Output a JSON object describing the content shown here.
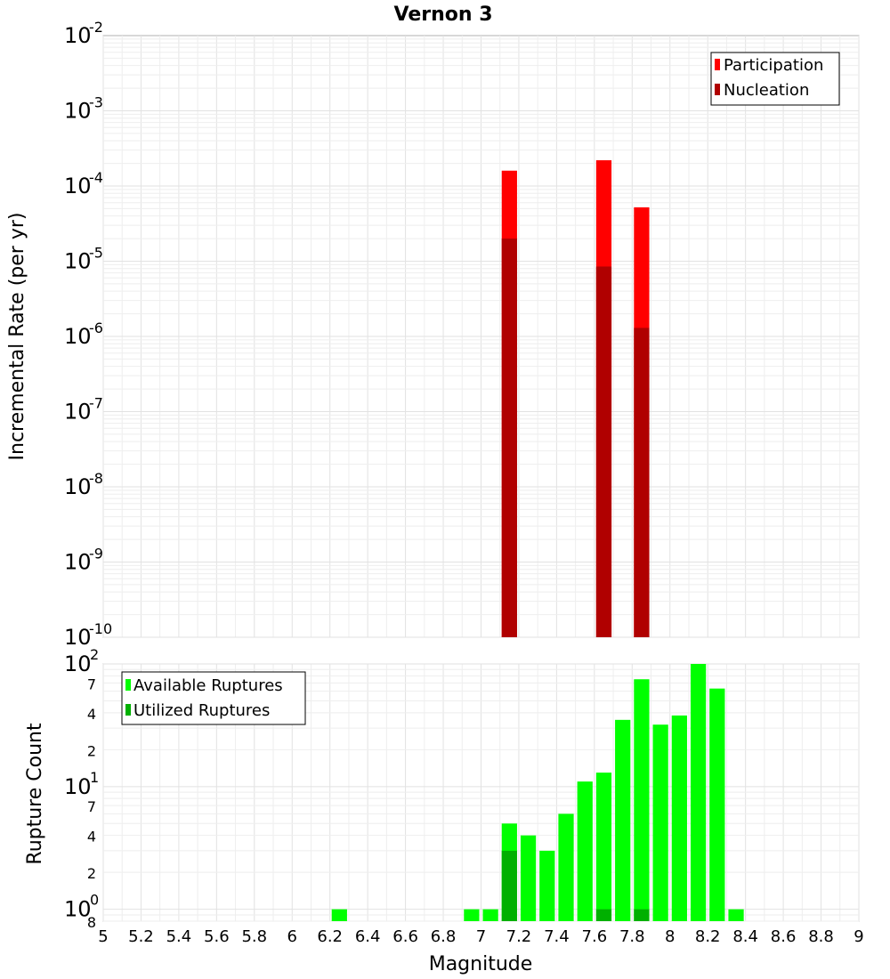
{
  "title": "Vernon 3",
  "chart_data": [
    {
      "type": "bar",
      "yscale": "log",
      "ylabel": "Incremental Rate (per yr)",
      "xlabel": "",
      "xlim": [
        5,
        9
      ],
      "ylim": [
        1e-10,
        0.01
      ],
      "y_tick_exponents": [
        -10,
        -9,
        -8,
        -7,
        -6,
        -5,
        -4,
        -3,
        -2
      ],
      "y_tick_base": "10",
      "bin_width": 0.1,
      "legend_position": "top-right",
      "series": [
        {
          "name": "Participation",
          "color": "#ff0000",
          "x": [
            7.15,
            7.65,
            7.85
          ],
          "values": [
            0.00016,
            0.00022,
            5.2e-05
          ]
        },
        {
          "name": "Nucleation",
          "color": "#b00000",
          "x": [
            7.15,
            7.65,
            7.85
          ],
          "values": [
            2e-05,
            8.5e-06,
            1.3e-06
          ]
        }
      ]
    },
    {
      "type": "bar",
      "yscale": "log",
      "ylabel": "Rupture Count",
      "xlabel": "Magnitude",
      "xlim": [
        5,
        9
      ],
      "ylim": [
        0.8,
        100
      ],
      "y_major_ticks": [
        {
          "value": 1,
          "base": "10",
          "exp": "0"
        },
        {
          "value": 10,
          "base": "10",
          "exp": "1"
        },
        {
          "value": 100,
          "base": "10",
          "exp": "2"
        }
      ],
      "y_minor_ticks": [
        {
          "value": 0.8,
          "label": "8"
        },
        {
          "value": 2,
          "label": "2"
        },
        {
          "value": 4,
          "label": "4"
        },
        {
          "value": 7,
          "label": "7"
        },
        {
          "value": 20,
          "label": "2"
        },
        {
          "value": 40,
          "label": "4"
        },
        {
          "value": 70,
          "label": "7"
        }
      ],
      "x_ticks": [
        "5",
        "5.2",
        "5.4",
        "5.6",
        "5.8",
        "6",
        "6.2",
        "6.4",
        "6.6",
        "6.8",
        "7",
        "7.2",
        "7.4",
        "7.6",
        "7.8",
        "8",
        "8.2",
        "8.4",
        "8.6",
        "8.8",
        "9"
      ],
      "bin_width": 0.1,
      "legend_position": "top-left",
      "series": [
        {
          "name": "Available Ruptures",
          "color": "#00ff00",
          "x": [
            6.25,
            6.95,
            7.05,
            7.15,
            7.25,
            7.35,
            7.45,
            7.55,
            7.65,
            7.75,
            7.85,
            7.95,
            8.05,
            8.15,
            8.25,
            8.35
          ],
          "values": [
            1,
            1,
            1,
            5,
            4,
            3,
            6,
            11,
            13,
            35,
            75,
            32,
            38,
            100,
            63,
            1
          ]
        },
        {
          "name": "Utilized Ruptures",
          "color": "#00b000",
          "x": [
            7.15,
            7.65,
            7.85
          ],
          "values": [
            3,
            1,
            1
          ]
        }
      ]
    }
  ]
}
